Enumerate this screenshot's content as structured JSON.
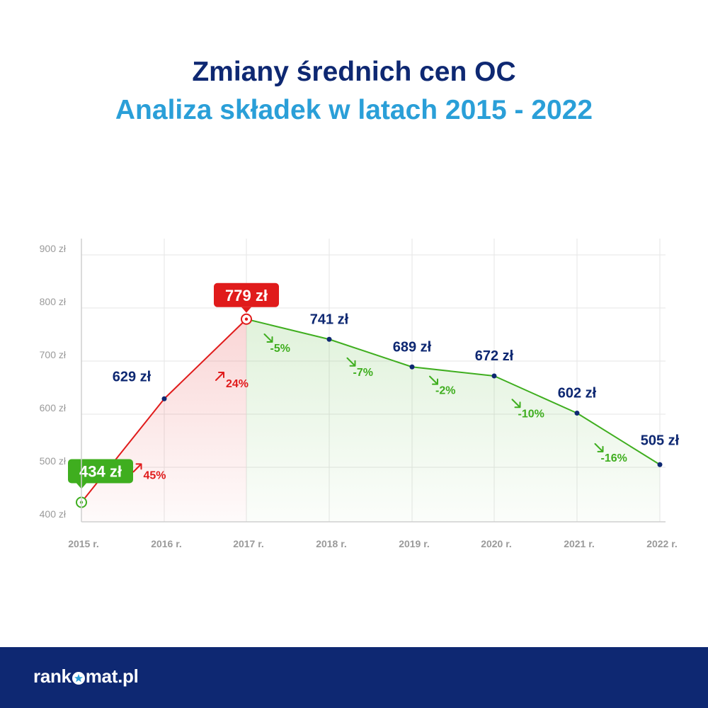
{
  "title": "Zmiany średnich cen OC",
  "subtitle": "Analiza składek w latach 2015 - 2022",
  "chart_data": {
    "type": "line",
    "categories": [
      "2015 r.",
      "2016 r.",
      "2017 r.",
      "2018 r.",
      "2019 r.",
      "2020 r.",
      "2021 r.",
      "2022 r."
    ],
    "values": [
      434,
      629,
      779,
      741,
      689,
      672,
      602,
      505
    ],
    "point_labels": [
      "434 zł",
      "629 zł",
      "779 zł",
      "741 zł",
      "689 zł",
      "672 zł",
      "602 zł",
      "505 zł"
    ],
    "changes": [
      "45%",
      "24%",
      "-5%",
      "-7%",
      "-2%",
      "-10%",
      "-16%"
    ],
    "yticks": [
      400,
      500,
      600,
      700,
      800,
      900
    ],
    "ytick_labels": [
      "400 zł",
      "500 zł",
      "600 zł",
      "700 zł",
      "800 zł",
      "900 zł"
    ],
    "ylim": [
      400,
      900
    ],
    "grid": true,
    "highlight_min_label": "434 zł",
    "highlight_max_label": "779 zł",
    "colors": {
      "increase": "#e01b1b",
      "decrease": "#3fae1f",
      "point": "#0e2872",
      "label": "#0e2872",
      "grid": "#e6e6e6",
      "axis_text": "#9a9a9a"
    }
  },
  "footer": {
    "logo_part1": "rank",
    "logo_part2": "mat.pl",
    "logo_icon": "star-icon"
  }
}
